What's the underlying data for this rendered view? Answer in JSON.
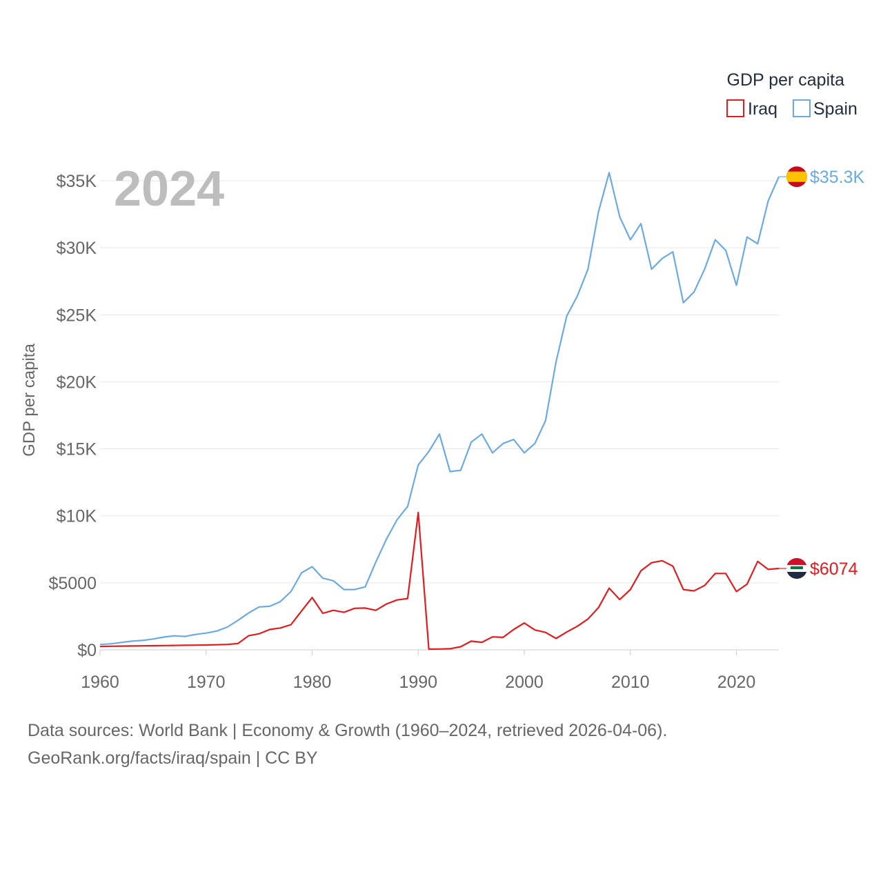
{
  "chart_data": {
    "type": "line",
    "year_label": "2024",
    "ylabel": "GDP per capita",
    "legend": {
      "title": "GDP per capita",
      "placement": "top-right"
    },
    "x_ticks": [
      1960,
      1970,
      1980,
      1990,
      2000,
      2010,
      2020
    ],
    "y_ticks": [
      {
        "value": 0,
        "label": "$0"
      },
      {
        "value": 5000,
        "label": "$5000"
      },
      {
        "value": 10000,
        "label": "$10K"
      },
      {
        "value": 15000,
        "label": "$15K"
      },
      {
        "value": 20000,
        "label": "$20K"
      },
      {
        "value": 25000,
        "label": "$25K"
      },
      {
        "value": 30000,
        "label": "$30K"
      },
      {
        "value": 35000,
        "label": "$35K"
      }
    ],
    "xlim": [
      1960,
      2024
    ],
    "ylim": [
      0,
      35000
    ],
    "x_start": 1960,
    "series": [
      {
        "name": "Iraq",
        "color": "#e41a1c",
        "end_label": "$6074",
        "flag": "iraq-flag",
        "values": [
          250,
          270,
          280,
          290,
          300,
          310,
          320,
          330,
          340,
          350,
          360,
          380,
          400,
          470,
          1050,
          1200,
          1520,
          1630,
          1880,
          2900,
          3900,
          2730,
          2950,
          2800,
          3100,
          3120,
          2950,
          3420,
          3720,
          3830,
          10250,
          50,
          60,
          80,
          230,
          650,
          560,
          970,
          930,
          1520,
          2000,
          1480,
          1300,
          850,
          1330,
          1760,
          2300,
          3150,
          4600,
          3750,
          4500,
          5900,
          6500,
          6650,
          6250,
          4500,
          4400,
          4800,
          5700,
          5700,
          4350,
          4900,
          6600,
          6000,
          6074
        ]
      },
      {
        "name": "Spain",
        "color": "#6aaae4",
        "end_label": "$35.3K",
        "flag": "spain-flag",
        "values": [
          400,
          450,
          550,
          650,
          700,
          810,
          950,
          1050,
          1000,
          1150,
          1250,
          1400,
          1700,
          2200,
          2750,
          3200,
          3250,
          3600,
          4350,
          5750,
          6200,
          5350,
          5150,
          4500,
          4500,
          4700,
          6550,
          8250,
          9700,
          10700,
          13800,
          14800,
          16100,
          13300,
          13400,
          15500,
          16100,
          14700,
          15400,
          15700,
          14700,
          15400,
          17100,
          21500,
          24900,
          26400,
          28400,
          32700,
          35600,
          32300,
          30600,
          31800,
          28400,
          29200,
          29700,
          25900,
          26700,
          28400,
          30600,
          29800,
          27200,
          30800,
          30300,
          33500,
          35300
        ]
      }
    ]
  },
  "source": {
    "line1": "Data sources: World Bank | Economy & Growth (1960–2024, retrieved 2026-04-06).",
    "line2": "GeoRank.org/facts/iraq/spain | CC BY"
  }
}
